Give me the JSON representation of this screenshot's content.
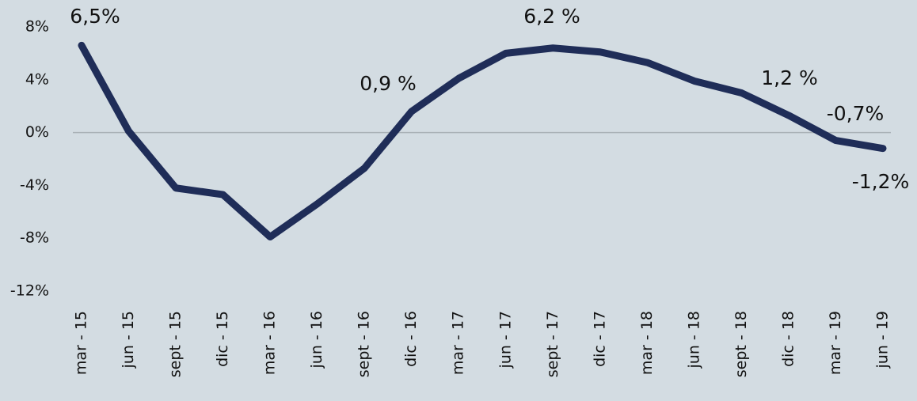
{
  "chart_data": {
    "type": "line",
    "categories": [
      "mar - 15",
      "jun - 15",
      "sept - 15",
      "dic - 15",
      "mar - 16",
      "jun - 16",
      "sept - 16",
      "dic - 16",
      "mar - 17",
      "jun - 17",
      "sept - 17",
      "dic - 17",
      "mar - 18",
      "jun - 18",
      "sept - 18",
      "dic - 18",
      "mar - 19",
      "jun - 19"
    ],
    "series": [
      {
        "color": "#1f2d58",
        "values": [
          6.6,
          0.1,
          -4.2,
          -4.7,
          -7.9,
          -5.4,
          -2.7,
          1.6,
          4.1,
          6.0,
          6.4,
          6.1,
          5.3,
          3.9,
          3.0,
          1.3,
          -0.6,
          -1.2
        ]
      }
    ],
    "ylim": [
      -12,
      8
    ],
    "yticks": [
      {
        "value": 8,
        "label": "8%"
      },
      {
        "value": 4,
        "label": "4%"
      },
      {
        "value": 0,
        "label": "0%"
      },
      {
        "value": -4,
        "label": "-4%"
      },
      {
        "value": -8,
        "label": "-8%"
      },
      {
        "value": -12,
        "label": "-12%"
      }
    ],
    "zero_line": true,
    "annotations": [
      "6,5%",
      "6,2 %",
      "0,9 %",
      "1,2 %",
      "-0,7%",
      "-1,2%"
    ]
  }
}
